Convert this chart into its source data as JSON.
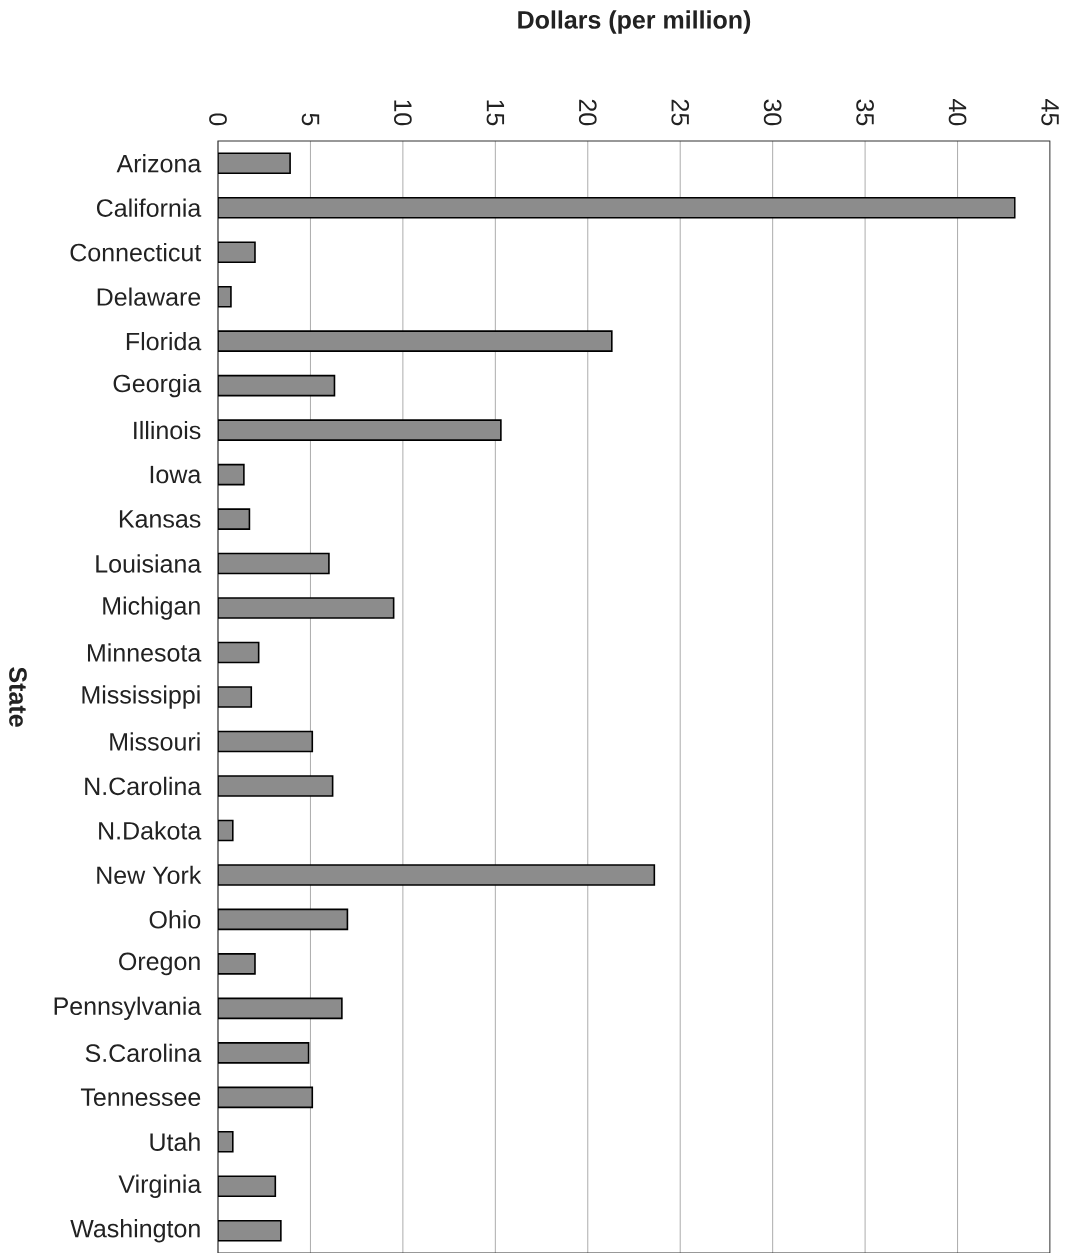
{
  "chart_data": {
    "type": "bar",
    "orientation": "horizontal",
    "xlabel": "Dollars (per million)",
    "ylabel": "State",
    "categories": [
      "Arizona",
      "California",
      "Connecticut",
      "Delaware",
      "Florida",
      "Georgia",
      "Illinois",
      "Iowa",
      "Kansas",
      "Louisiana",
      "Michigan",
      "Minnesota",
      "Mississippi",
      "Missouri",
      "N.Carolina",
      "N.Dakota",
      "New York",
      "Ohio",
      "Oregon",
      "Pennsylvania",
      "S.Carolina",
      "Tennessee",
      "Utah",
      "Virginia",
      "Washington"
    ],
    "values": [
      3.9,
      43.1,
      2.0,
      0.7,
      21.3,
      6.3,
      15.3,
      1.4,
      1.7,
      6.0,
      9.5,
      2.2,
      1.8,
      5.1,
      6.2,
      0.8,
      23.6,
      7.0,
      2.0,
      6.7,
      4.9,
      5.1,
      0.8,
      3.1,
      3.4
    ],
    "color": "#8c8c8c",
    "xlim": [
      0,
      45
    ],
    "xticks": [
      0,
      5,
      10,
      15,
      20,
      25,
      30,
      35,
      40,
      45
    ],
    "grid": "x"
  }
}
